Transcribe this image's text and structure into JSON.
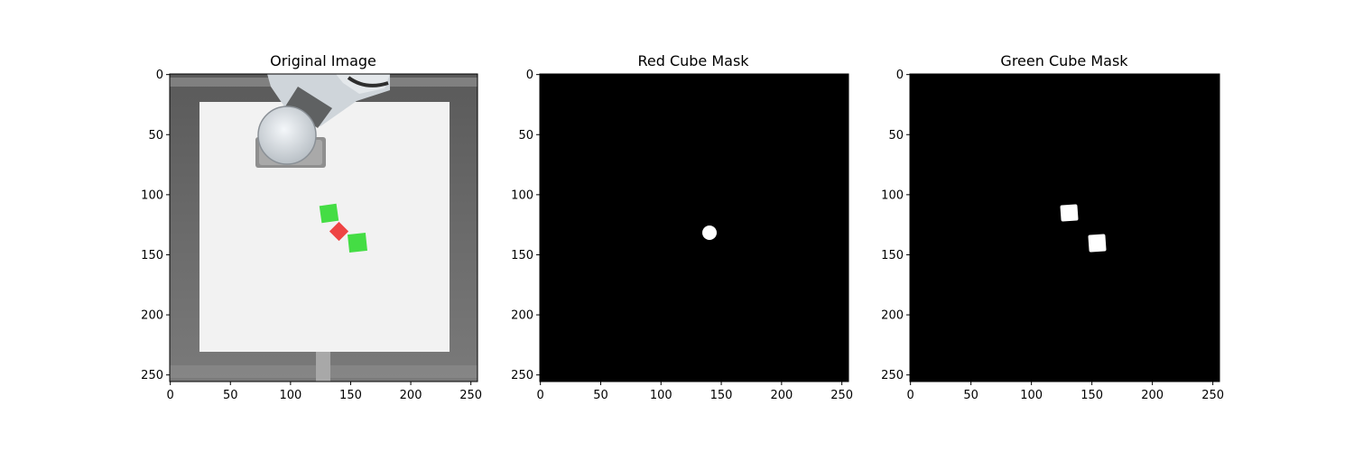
{
  "panels": [
    {
      "title": "Original Image",
      "kind": "photo",
      "x_ticks": [
        "0",
        "50",
        "100",
        "150",
        "200",
        "250"
      ],
      "y_ticks": [
        "0",
        "50",
        "100",
        "150",
        "200",
        "250"
      ]
    },
    {
      "title": "Red Cube Mask",
      "kind": "mask",
      "x_ticks": [
        "0",
        "50",
        "100",
        "150",
        "200",
        "250"
      ],
      "y_ticks": [
        "0",
        "50",
        "100",
        "150",
        "200",
        "250"
      ]
    },
    {
      "title": "Green Cube Mask",
      "kind": "mask",
      "x_ticks": [
        "0",
        "50",
        "100",
        "150",
        "200",
        "250"
      ],
      "y_ticks": [
        "0",
        "50",
        "100",
        "150",
        "200",
        "250"
      ]
    }
  ],
  "colors": {
    "frame": "#6e6e6e",
    "table": "#f2f2f2",
    "red_cube": "#ee4444",
    "green_cube": "#44dd44",
    "mask_bg": "#000000",
    "mask_fg": "#ffffff"
  }
}
